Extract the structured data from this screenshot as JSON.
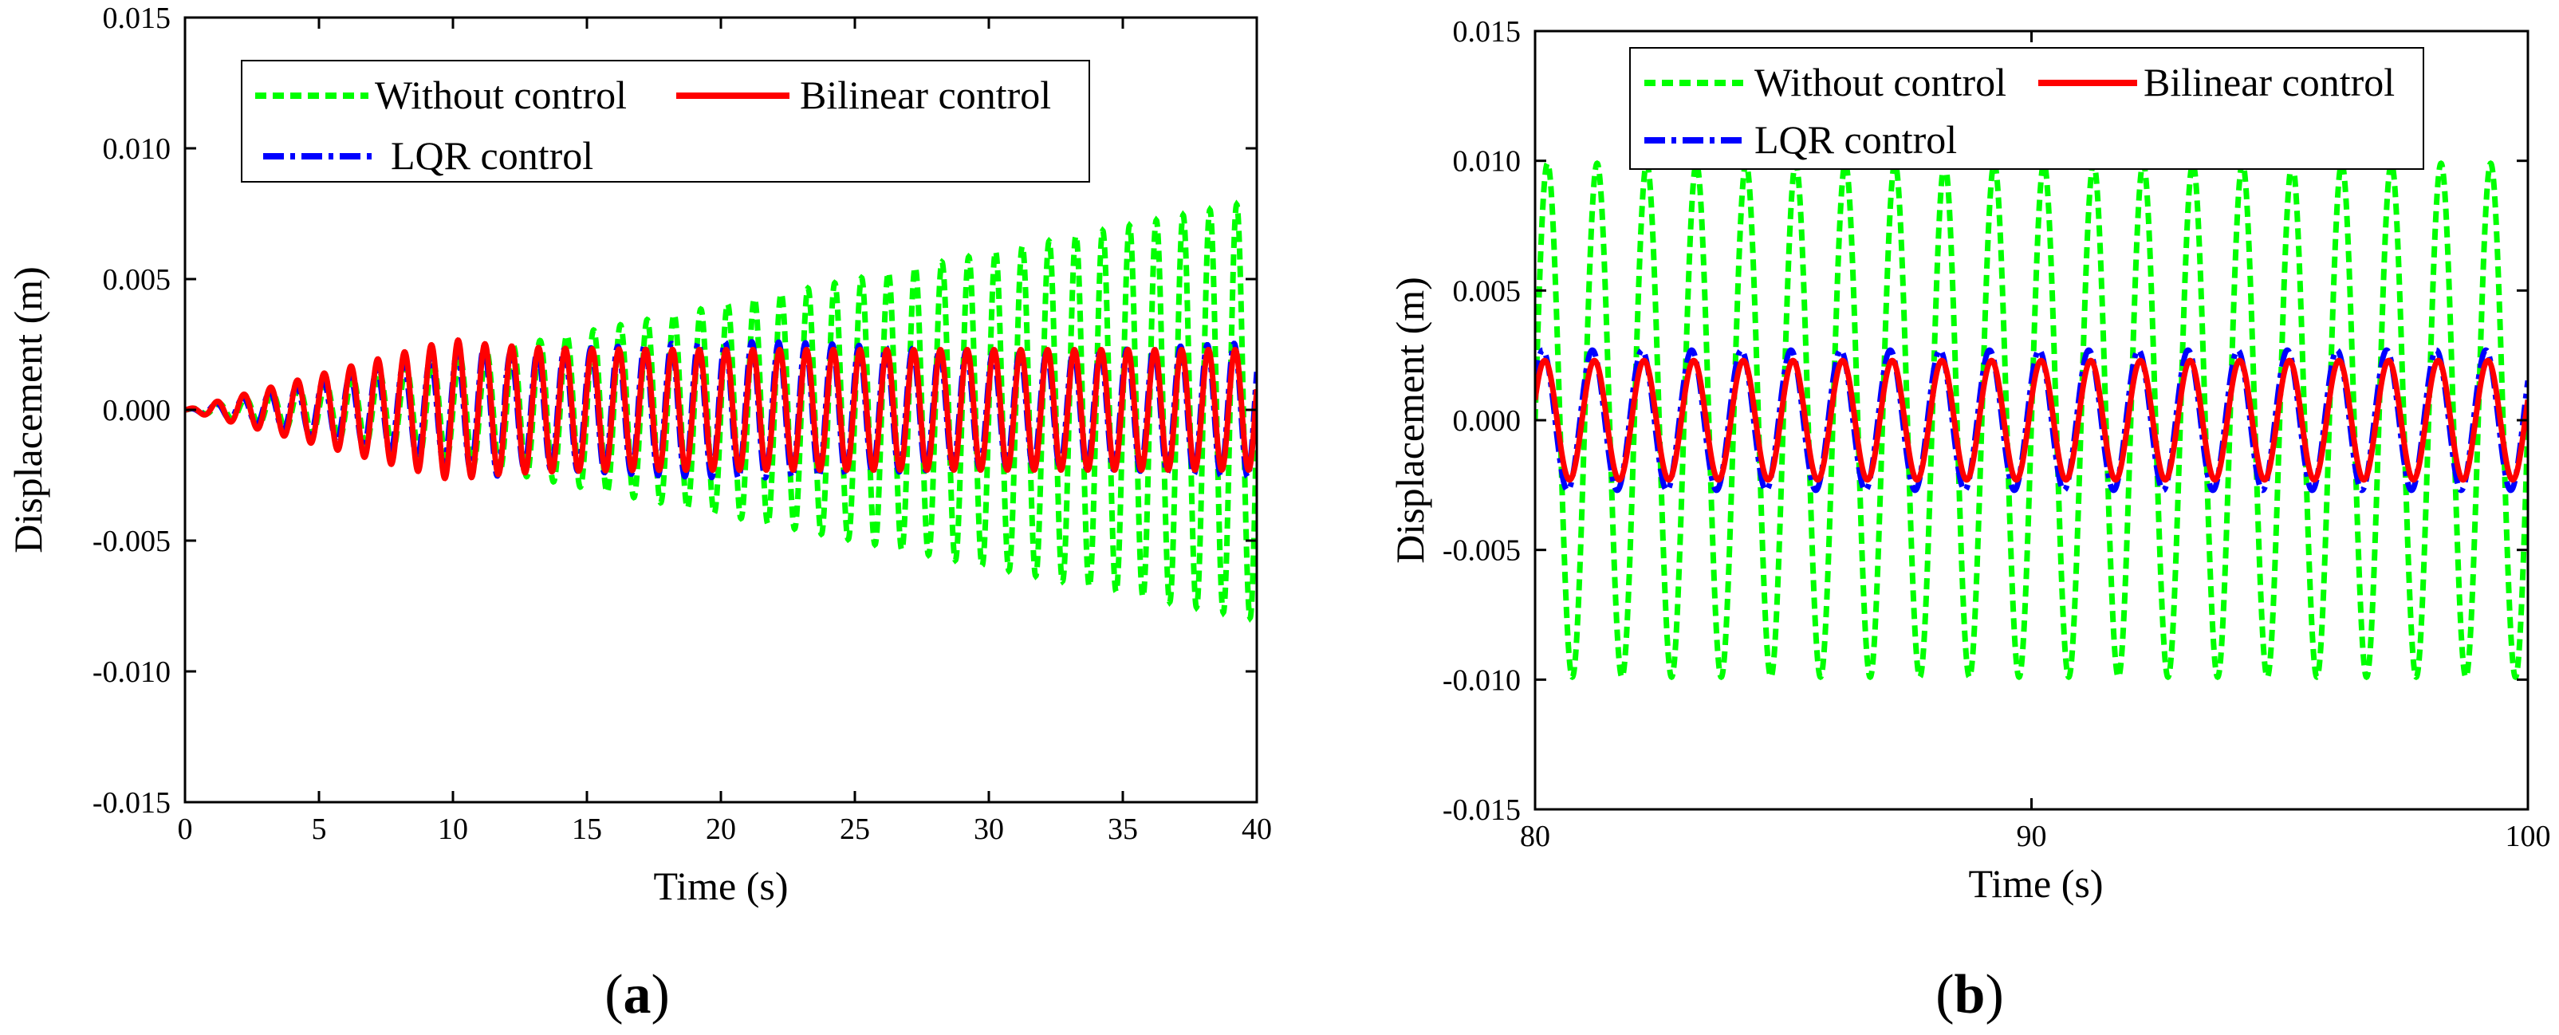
{
  "chart_data": [
    {
      "type": "line",
      "panel_label_prefix": "(",
      "panel_label_letter": "a",
      "panel_label_suffix": ")",
      "xlabel": "Time (s)",
      "ylabel": "Displacement (m)",
      "xlim": [
        0,
        40
      ],
      "ylim": [
        -0.015,
        0.015
      ],
      "xticks": [
        "0",
        "5",
        "10",
        "15",
        "20",
        "25",
        "30",
        "35",
        "40"
      ],
      "yticks": [
        "0.015",
        "0.010",
        "0.005",
        "0.000",
        "-0.005",
        "-0.010",
        "-0.015"
      ],
      "legend_position": "top-left",
      "series": [
        {
          "name": "Without control",
          "color": "#00ff00",
          "style": "dashed",
          "frequency_hz": 1.0,
          "envelope": "linear growth from 0.000 at t=0 to 0.008 at t=40"
        },
        {
          "name": "Bilinear control",
          "color": "#ff0000",
          "style": "solid",
          "frequency_hz": 1.0,
          "envelope": "grows to 0.0027 by t=10, then settles near 0.0023"
        },
        {
          "name": "LQR control",
          "color": "#0000ff",
          "style": "dash-dot",
          "frequency_hz": 1.0,
          "envelope": "grows to about 0.0026 and stays near 0.0024"
        }
      ]
    },
    {
      "type": "line",
      "panel_label_prefix": "(",
      "panel_label_letter": "b",
      "panel_label_suffix": ")",
      "xlabel": "Time (s)",
      "ylabel": "Displacement (m)",
      "xlim": [
        80,
        100
      ],
      "ylim": [
        -0.015,
        0.015
      ],
      "xticks": [
        "80",
        "90",
        "100"
      ],
      "yticks": [
        "0.015",
        "0.010",
        "0.005",
        "0.000",
        "-0.005",
        "-0.010",
        "-0.015"
      ],
      "legend_position": "top",
      "series": [
        {
          "name": "Without control",
          "color": "#00ff00",
          "style": "dashed",
          "frequency_hz": 1.0,
          "amplitude": 0.0099
        },
        {
          "name": "Bilinear control",
          "color": "#ff0000",
          "style": "solid",
          "frequency_hz": 1.0,
          "amplitude": 0.0023
        },
        {
          "name": "LQR control",
          "color": "#0000ff",
          "style": "dash-dot",
          "frequency_hz": 1.0,
          "amplitude": 0.0027
        }
      ]
    }
  ]
}
